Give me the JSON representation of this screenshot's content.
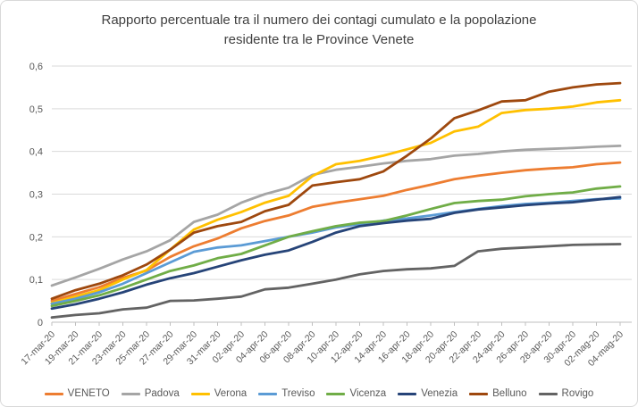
{
  "chart": {
    "title_line1": "Rapporto percentuale tra il numero dei contagi cumulato e la popolazione",
    "title_line2": "residente tra le Province Venete"
  },
  "colors": {
    "grid": "#d9d9d9",
    "axis": "#bfbfbf",
    "tick_label": "#595959",
    "title": "#404040"
  },
  "chart_data": {
    "type": "line",
    "title": "Rapporto percentuale tra il numero dei contagi cumulato e la popolazione residente tra le Province Venete",
    "xlabel": "",
    "ylabel": "",
    "grid": true,
    "legend_position": "bottom",
    "ylim": [
      0,
      0.6
    ],
    "yticks": {
      "values": [
        0,
        0.1,
        0.2,
        0.3,
        0.4,
        0.5,
        0.6
      ],
      "labels": [
        "0",
        "0,1",
        "0,2",
        "0,3",
        "0,4",
        "0,5",
        "0,6"
      ]
    },
    "x": [
      "17-mar-20",
      "19-mar-20",
      "21-mar-20",
      "23-mar-20",
      "25-mar-20",
      "27-mar-20",
      "29-mar-20",
      "31-mar-20",
      "02-apr-20",
      "04-apr-20",
      "06-apr-20",
      "08-apr-20",
      "10-apr-20",
      "12-apr-20",
      "14-apr-20",
      "16-apr-20",
      "18-apr-20",
      "20-apr-20",
      "22-apr-20",
      "24-apr-20",
      "26-apr-20",
      "28-apr-20",
      "30-apr-20",
      "02-mag-20",
      "04-mag-20"
    ],
    "series": [
      {
        "name": "VENETO",
        "color": "#ED7D31",
        "values": [
          0.05,
          0.066,
          0.082,
          0.104,
          0.121,
          0.153,
          0.178,
          0.196,
          0.22,
          0.237,
          0.25,
          0.27,
          0.28,
          0.288,
          0.296,
          0.31,
          0.322,
          0.335,
          0.343,
          0.35,
          0.356,
          0.36,
          0.363,
          0.37,
          0.374
        ]
      },
      {
        "name": "Padova",
        "color": "#A5A5A5",
        "values": [
          0.086,
          0.105,
          0.125,
          0.147,
          0.166,
          0.192,
          0.235,
          0.252,
          0.28,
          0.3,
          0.315,
          0.345,
          0.357,
          0.364,
          0.372,
          0.378,
          0.382,
          0.39,
          0.394,
          0.4,
          0.404,
          0.406,
          0.408,
          0.411,
          0.413
        ]
      },
      {
        "name": "Verona",
        "color": "#FFC000",
        "values": [
          0.045,
          0.06,
          0.075,
          0.1,
          0.122,
          0.17,
          0.217,
          0.24,
          0.258,
          0.28,
          0.296,
          0.342,
          0.37,
          0.378,
          0.39,
          0.405,
          0.42,
          0.447,
          0.458,
          0.49,
          0.497,
          0.5,
          0.505,
          0.515,
          0.52
        ]
      },
      {
        "name": "Treviso",
        "color": "#5B9BD5",
        "values": [
          0.043,
          0.055,
          0.07,
          0.09,
          0.115,
          0.14,
          0.165,
          0.175,
          0.18,
          0.19,
          0.2,
          0.21,
          0.222,
          0.23,
          0.238,
          0.243,
          0.25,
          0.258,
          0.265,
          0.272,
          0.277,
          0.28,
          0.284,
          0.288,
          0.29
        ]
      },
      {
        "name": "Vicenza",
        "color": "#70AD47",
        "values": [
          0.038,
          0.05,
          0.063,
          0.08,
          0.1,
          0.12,
          0.133,
          0.15,
          0.16,
          0.18,
          0.2,
          0.213,
          0.225,
          0.233,
          0.237,
          0.25,
          0.265,
          0.279,
          0.284,
          0.287,
          0.295,
          0.3,
          0.304,
          0.313,
          0.318
        ]
      },
      {
        "name": "Venezia",
        "color": "#264478",
        "values": [
          0.032,
          0.042,
          0.055,
          0.07,
          0.088,
          0.103,
          0.115,
          0.13,
          0.145,
          0.158,
          0.168,
          0.188,
          0.21,
          0.225,
          0.232,
          0.238,
          0.242,
          0.256,
          0.264,
          0.269,
          0.274,
          0.278,
          0.281,
          0.287,
          0.293
        ]
      },
      {
        "name": "Belluno",
        "color": "#9E480E",
        "values": [
          0.055,
          0.075,
          0.09,
          0.11,
          0.135,
          0.17,
          0.21,
          0.225,
          0.235,
          0.26,
          0.275,
          0.32,
          0.328,
          0.335,
          0.353,
          0.39,
          0.43,
          0.478,
          0.496,
          0.517,
          0.52,
          0.54,
          0.55,
          0.557,
          0.56
        ]
      },
      {
        "name": "Rovigo",
        "color": "#636363",
        "values": [
          0.011,
          0.017,
          0.021,
          0.03,
          0.034,
          0.05,
          0.051,
          0.055,
          0.06,
          0.077,
          0.081,
          0.09,
          0.1,
          0.112,
          0.12,
          0.124,
          0.126,
          0.132,
          0.166,
          0.172,
          0.175,
          0.178,
          0.181,
          0.182,
          0.183
        ]
      }
    ]
  }
}
